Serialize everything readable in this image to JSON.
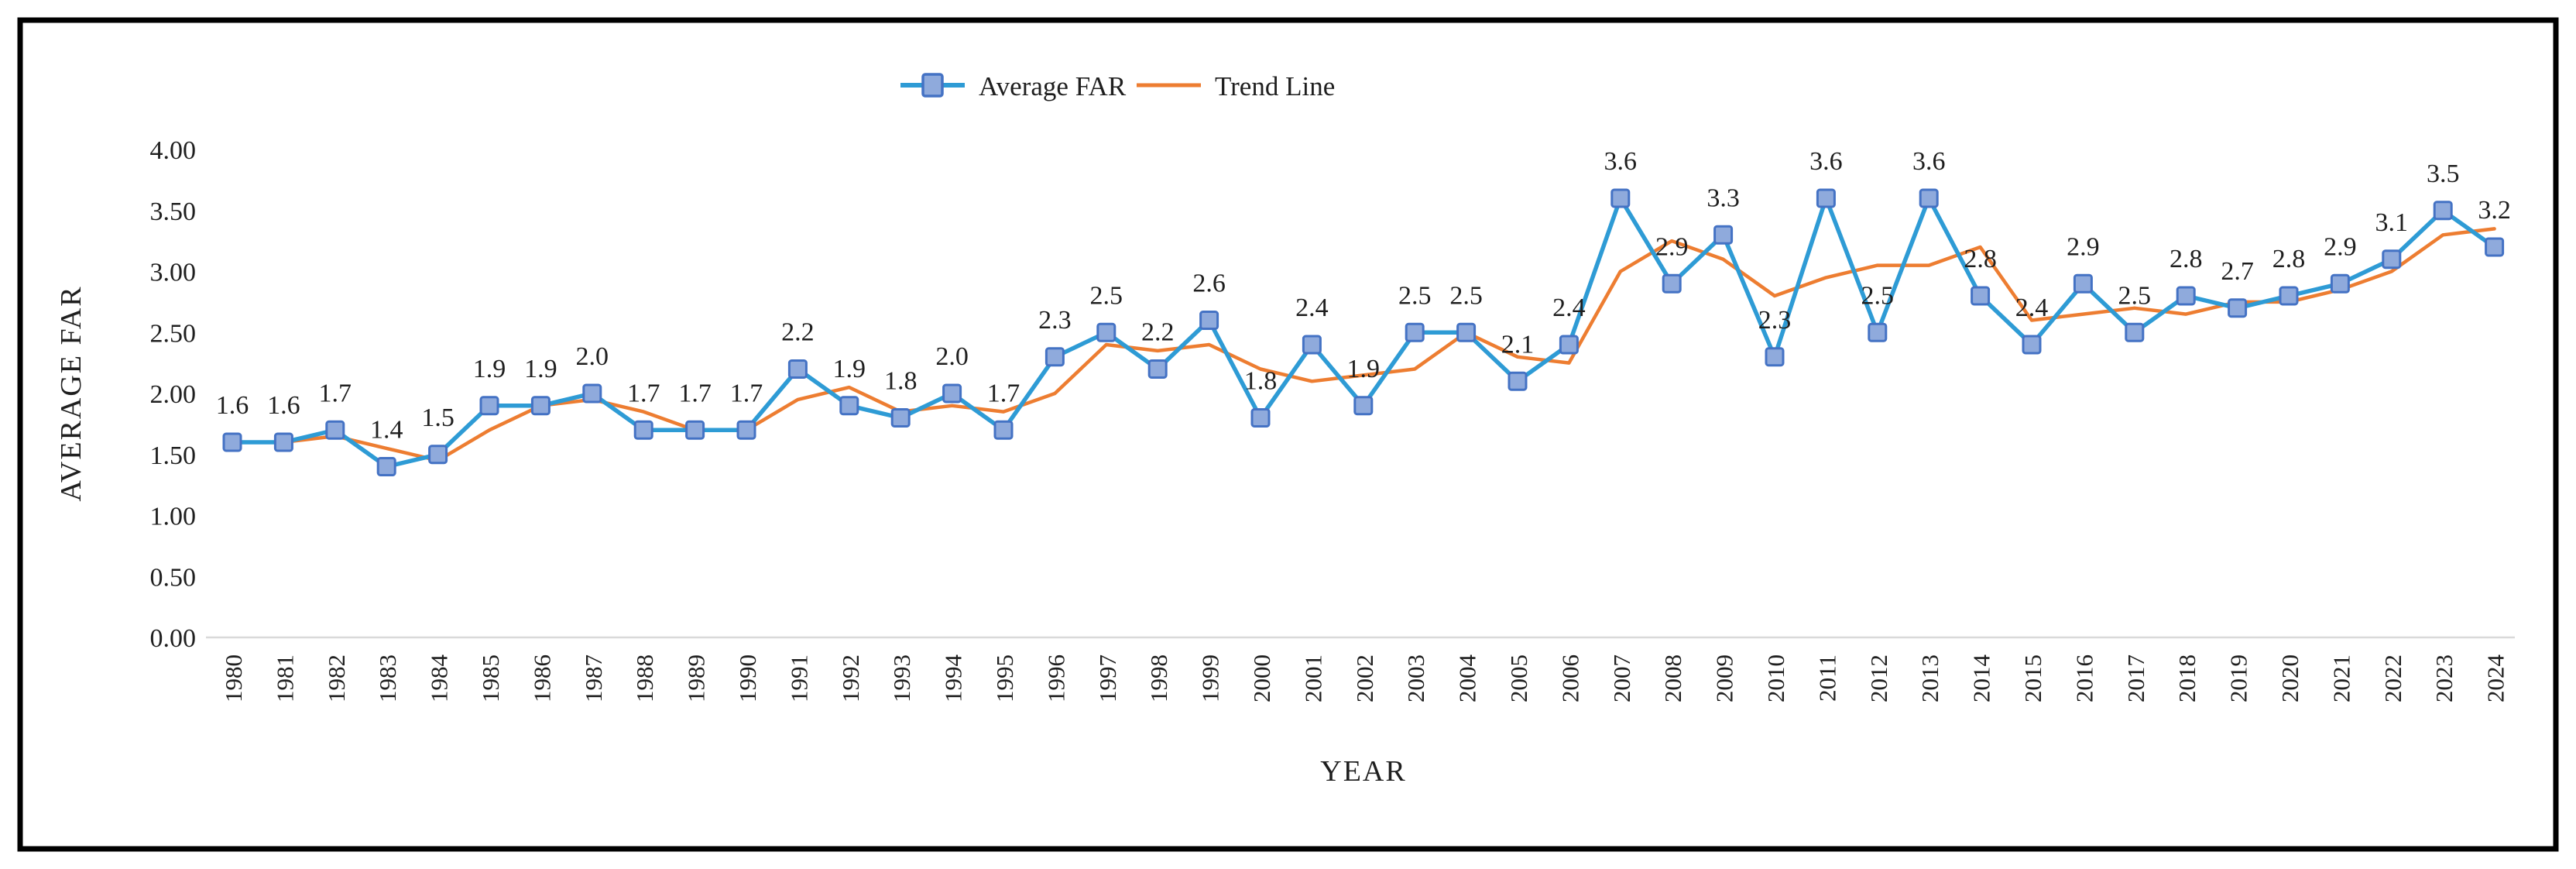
{
  "colors": {
    "average_far_line": "#2E9BD5",
    "marker_fill": "#8FAADC",
    "marker_border": "#4472C4",
    "trend_line": "#ED7D31",
    "axis_line": "#D9D9D9",
    "text": "#1F1F1F",
    "frame": "#000000",
    "background": "#FFFFFF"
  },
  "chart_data": {
    "type": "line",
    "title": "",
    "xlabel": "YEAR",
    "ylabel": "AVERAGE FAR",
    "ylim": [
      0,
      4
    ],
    "ytick_step": 0.5,
    "ytick_labels": [
      "0.00",
      "0.50",
      "1.00",
      "1.50",
      "2.00",
      "2.50",
      "3.00",
      "3.50",
      "4.00"
    ],
    "grid": false,
    "legend_position": "top-center",
    "x": [
      1980,
      1981,
      1982,
      1983,
      1984,
      1985,
      1986,
      1987,
      1988,
      1989,
      1990,
      1991,
      1992,
      1993,
      1994,
      1995,
      1996,
      1997,
      1998,
      1999,
      2000,
      2001,
      2002,
      2003,
      2004,
      2005,
      2006,
      2007,
      2008,
      2009,
      2010,
      2011,
      2012,
      2013,
      2014,
      2015,
      2016,
      2017,
      2018,
      2019,
      2020,
      2021,
      2022,
      2023,
      2024
    ],
    "series": [
      {
        "name": "Average FAR",
        "marker": "square",
        "values": [
          1.6,
          1.6,
          1.7,
          1.4,
          1.5,
          1.9,
          1.9,
          2.0,
          1.7,
          1.7,
          1.7,
          2.2,
          1.9,
          1.8,
          2.0,
          1.7,
          2.3,
          2.5,
          2.2,
          2.6,
          1.8,
          2.4,
          1.9,
          2.5,
          2.5,
          2.1,
          2.4,
          3.6,
          2.9,
          3.3,
          2.3,
          3.6,
          2.5,
          3.6,
          2.8,
          2.4,
          2.9,
          2.5,
          2.8,
          2.7,
          2.8,
          2.9,
          3.1,
          3.5,
          3.2
        ],
        "point_labels": [
          "1.6",
          "1.6",
          "1.7",
          "1.4",
          "1.5",
          "1.9",
          "1.9",
          "2.0",
          "1.7",
          "1.7",
          "1.7",
          "2.2",
          "1.9",
          "1.8",
          "2.0",
          "1.7",
          "2.3",
          "2.5",
          "2.2",
          "2.6",
          "1.8",
          "2.4",
          "1.9",
          "2.5",
          "2.5",
          "2.1",
          "2.4",
          "3.6",
          "2.9",
          "3.3",
          "2.3",
          "3.6",
          "2.5",
          "3.6",
          "2.8",
          "2.4",
          "2.9",
          "2.5",
          "2.8",
          "2.7",
          "2.8",
          "2.9",
          "3.1",
          "3.5",
          "3.2"
        ]
      },
      {
        "name": "Trend Line",
        "marker": "none",
        "values": [
          null,
          1.6,
          1.65,
          1.55,
          1.45,
          1.7,
          1.9,
          1.95,
          1.85,
          1.7,
          1.7,
          1.95,
          2.05,
          1.85,
          1.9,
          1.85,
          2.0,
          2.4,
          2.35,
          2.4,
          2.2,
          2.1,
          2.15,
          2.2,
          2.5,
          2.3,
          2.25,
          3.0,
          3.25,
          3.1,
          2.8,
          2.95,
          3.05,
          3.05,
          3.2,
          2.6,
          2.65,
          2.7,
          2.65,
          2.75,
          2.75,
          2.85,
          3.0,
          3.3,
          3.35
        ]
      }
    ]
  }
}
